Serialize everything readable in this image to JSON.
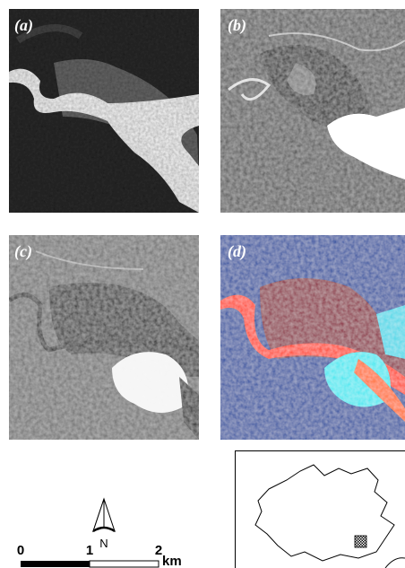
{
  "panels": [
    {
      "label": "(a)"
    },
    {
      "label": "(b)"
    },
    {
      "label": "(c)"
    },
    {
      "label": "(d)"
    }
  ],
  "north_arrow": {
    "label": "N"
  },
  "scale_bar": {
    "labels": [
      "0",
      "1",
      "2"
    ],
    "unit": "km"
  }
}
